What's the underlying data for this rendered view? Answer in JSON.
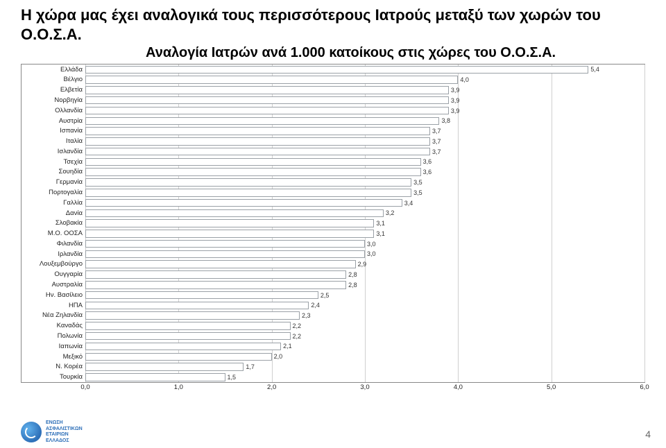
{
  "title_line1": "Η χώρα μας έχει αναλογικά τους περισσότερους Ιατρούς μεταξύ των χωρών του Ο.Ο.Σ.Α.",
  "subtitle": "Αναλογία Ιατρών ανά 1.000 κατοίκους στις χώρες του Ο.Ο.Σ.Α.",
  "chart": {
    "type": "bar",
    "orientation": "horizontal",
    "xlim": [
      0.0,
      6.0
    ],
    "xtick_step": 1.0,
    "xticks": [
      "0,0",
      "1,0",
      "2,0",
      "3,0",
      "4,0",
      "5,0",
      "6,0"
    ],
    "bar_fill": "#ffffff",
    "bar_border": "#9aa0a6",
    "highlight_fill": "#ffffff",
    "highlight_border": "#9aa0a6",
    "grid_color": "#cfcfcf",
    "frame_color": "#888888",
    "background_color": "#ffffff",
    "label_fontsize": 9.5,
    "value_fontsize": 9,
    "rows": [
      {
        "label": "Ελλάδα",
        "value": 5.4,
        "display": "5,4",
        "highlight": true
      },
      {
        "label": "Βέλγιο",
        "value": 4.0,
        "display": "4,0"
      },
      {
        "label": "Ελβετία",
        "value": 3.9,
        "display": "3,9"
      },
      {
        "label": "Νορβηγία",
        "value": 3.9,
        "display": "3,9"
      },
      {
        "label": "Ολλανδία",
        "value": 3.9,
        "display": "3,9"
      },
      {
        "label": "Αυστρία",
        "value": 3.8,
        "display": "3,8"
      },
      {
        "label": "Ισπανία",
        "value": 3.7,
        "display": "3,7"
      },
      {
        "label": "Ιταλία",
        "value": 3.7,
        "display": "3,7"
      },
      {
        "label": "Ισλανδία",
        "value": 3.7,
        "display": "3,7"
      },
      {
        "label": "Τσεχία",
        "value": 3.6,
        "display": "3,6"
      },
      {
        "label": "Σουηδία",
        "value": 3.6,
        "display": "3,6"
      },
      {
        "label": "Γερμανία",
        "value": 3.5,
        "display": "3,5"
      },
      {
        "label": "Πορτογαλία",
        "value": 3.5,
        "display": "3,5"
      },
      {
        "label": "Γαλλία",
        "value": 3.4,
        "display": "3,4"
      },
      {
        "label": "Δανία",
        "value": 3.2,
        "display": "3,2"
      },
      {
        "label": "Σλοβακία",
        "value": 3.1,
        "display": "3,1"
      },
      {
        "label": "Μ.Ο. ΟΟΣΑ",
        "value": 3.1,
        "display": "3,1"
      },
      {
        "label": "Φιλανδία",
        "value": 3.0,
        "display": "3,0"
      },
      {
        "label": "Ιρλανδία",
        "value": 3.0,
        "display": "3,0"
      },
      {
        "label": "Λουξεμβούργο",
        "value": 2.9,
        "display": "2,9"
      },
      {
        "label": "Ουγγαρία",
        "value": 2.8,
        "display": "2,8"
      },
      {
        "label": "Αυστραλία",
        "value": 2.8,
        "display": "2,8"
      },
      {
        "label": "Ην. Βασίλειο",
        "value": 2.5,
        "display": "2,5"
      },
      {
        "label": "ΗΠΑ",
        "value": 2.4,
        "display": "2,4"
      },
      {
        "label": "Νέα Ζηλανδία",
        "value": 2.3,
        "display": "2,3"
      },
      {
        "label": "Καναδάς",
        "value": 2.2,
        "display": "2,2"
      },
      {
        "label": "Πολωνία",
        "value": 2.2,
        "display": "2,2"
      },
      {
        "label": "Ιαπωνία",
        "value": 2.1,
        "display": "2,1"
      },
      {
        "label": "Μεξικό",
        "value": 2.0,
        "display": "2,0"
      },
      {
        "label": "Ν. Κορέα",
        "value": 1.7,
        "display": "1,7"
      },
      {
        "label": "Τουρκία",
        "value": 1.5,
        "display": "1,5"
      }
    ]
  },
  "logo_text": "ΕΝΩΣΗ\nΑΣΦΑΛΙΣΤΙΚΩΝ\nΕΤΑΙΡΙΩΝ\nΕΛΛΑΔΟΣ",
  "page_number": "4"
}
